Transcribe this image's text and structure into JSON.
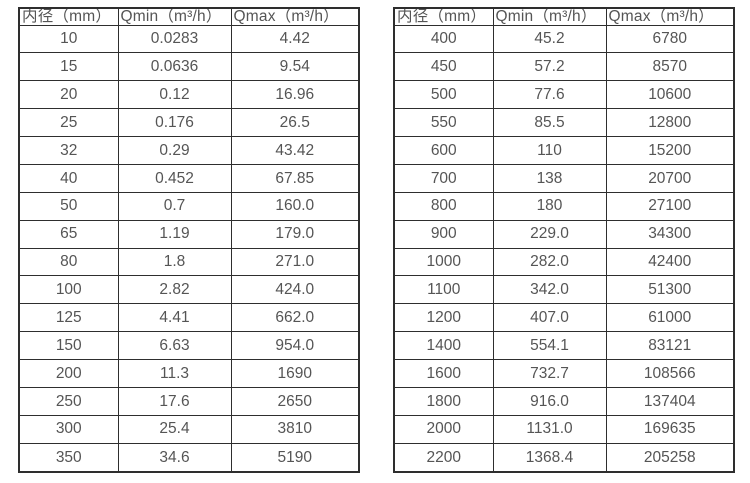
{
  "page": {
    "background_color": "#ffffff",
    "text_color": "#555555",
    "border_color": "#2e2e2e"
  },
  "tables": [
    {
      "title": "flow-range-table-small-diameters",
      "headers": [
        "内径（mm）",
        "Qmin（m³/h）",
        "Qmax（m³/h）"
      ],
      "rows": [
        [
          "10",
          "0.0283",
          "4.42"
        ],
        [
          "15",
          "0.0636",
          "9.54"
        ],
        [
          "20",
          "0.12",
          "16.96"
        ],
        [
          "25",
          "0.176",
          "26.5"
        ],
        [
          "32",
          "0.29",
          "43.42"
        ],
        [
          "40",
          "0.452",
          "67.85"
        ],
        [
          "50",
          "0.7",
          "160.0"
        ],
        [
          "65",
          "1.19",
          "179.0"
        ],
        [
          "80",
          "1.8",
          "271.0"
        ],
        [
          "100",
          "2.82",
          "424.0"
        ],
        [
          "125",
          "4.41",
          "662.0"
        ],
        [
          "150",
          "6.63",
          "954.0"
        ],
        [
          "200",
          "11.3",
          "1690"
        ],
        [
          "250",
          "17.6",
          "2650"
        ],
        [
          "300",
          "25.4",
          "3810"
        ],
        [
          "350",
          "34.6",
          "5190"
        ]
      ]
    },
    {
      "title": "flow-range-table-large-diameters",
      "headers": [
        "内径（mm）",
        "Qmin（m³/h）",
        "Qmax（m³/h）"
      ],
      "rows": [
        [
          "400",
          "45.2",
          "6780"
        ],
        [
          "450",
          "57.2",
          "8570"
        ],
        [
          "500",
          "77.6",
          "10600"
        ],
        [
          "550",
          "85.5",
          "12800"
        ],
        [
          "600",
          "110",
          "15200"
        ],
        [
          "700",
          "138",
          "20700"
        ],
        [
          "800",
          "180",
          "27100"
        ],
        [
          "900",
          "229.0",
          "34300"
        ],
        [
          "1000",
          "282.0",
          "42400"
        ],
        [
          "1100",
          "342.0",
          "51300"
        ],
        [
          "1200",
          "407.0",
          "61000"
        ],
        [
          "1400",
          "554.1",
          "83121"
        ],
        [
          "1600",
          "732.7",
          "108566"
        ],
        [
          "1800",
          "916.0",
          "137404"
        ],
        [
          "2000",
          "1131.0",
          "169635"
        ],
        [
          "2200",
          "1368.4",
          "205258"
        ]
      ]
    }
  ]
}
